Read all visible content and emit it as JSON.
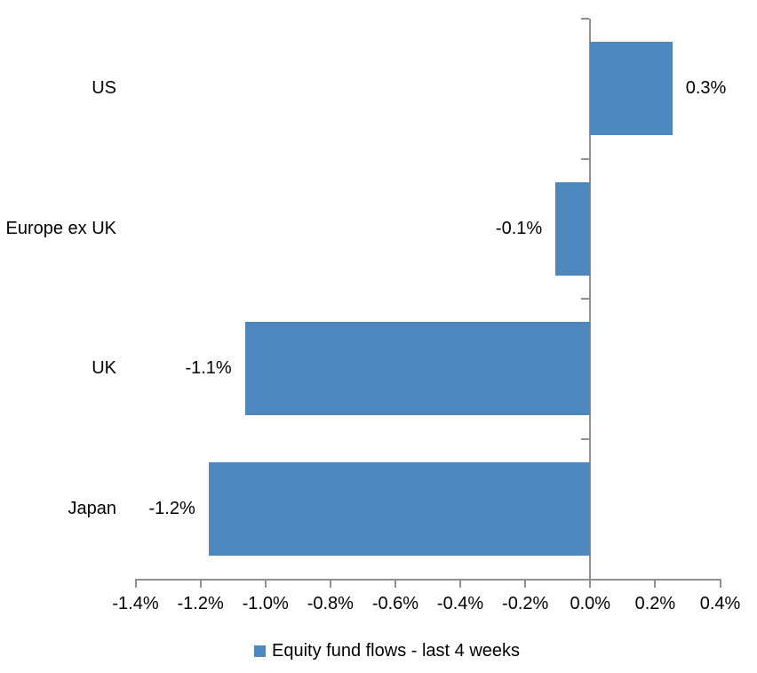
{
  "chart_data": {
    "type": "bar",
    "orientation": "horizontal",
    "title": "",
    "xlabel": "",
    "ylabel": "",
    "categories": [
      "US",
      "Europe ex UK",
      "UK",
      "Japan"
    ],
    "series": [
      {
        "name": "Equity fund flows - last 4 weeks",
        "values": [
          0.3,
          -0.1,
          -1.1,
          -1.2
        ],
        "labels": [
          "0.3%",
          "-0.1%",
          "-1.1%",
          "-1.2%"
        ],
        "plot_values": [
          0.253,
          -0.107,
          -1.063,
          -1.175
        ]
      }
    ],
    "xlim": [
      -1.4,
      0.4
    ],
    "x_ticks": [
      {
        "value": -1.4,
        "label": "-1.4%"
      },
      {
        "value": -1.2,
        "label": "-1.2%"
      },
      {
        "value": -1.0,
        "label": "-1.0%"
      },
      {
        "value": -0.8,
        "label": "-0.8%"
      },
      {
        "value": -0.6,
        "label": "-0.6%"
      },
      {
        "value": -0.4,
        "label": "-0.4%"
      },
      {
        "value": -0.2,
        "label": "-0.2%"
      },
      {
        "value": 0.0,
        "label": "0.0%"
      },
      {
        "value": 0.2,
        "label": "0.2%"
      },
      {
        "value": 0.4,
        "label": "0.4%"
      }
    ],
    "grid": "off",
    "legend": {
      "position": "bottom",
      "label": "Equity fund flows - last 4 weeks"
    },
    "colors": {
      "bar": "#4E87BE",
      "axis": "#8F8F8F",
      "text": "#000000",
      "background": "#FFFFFF"
    }
  }
}
